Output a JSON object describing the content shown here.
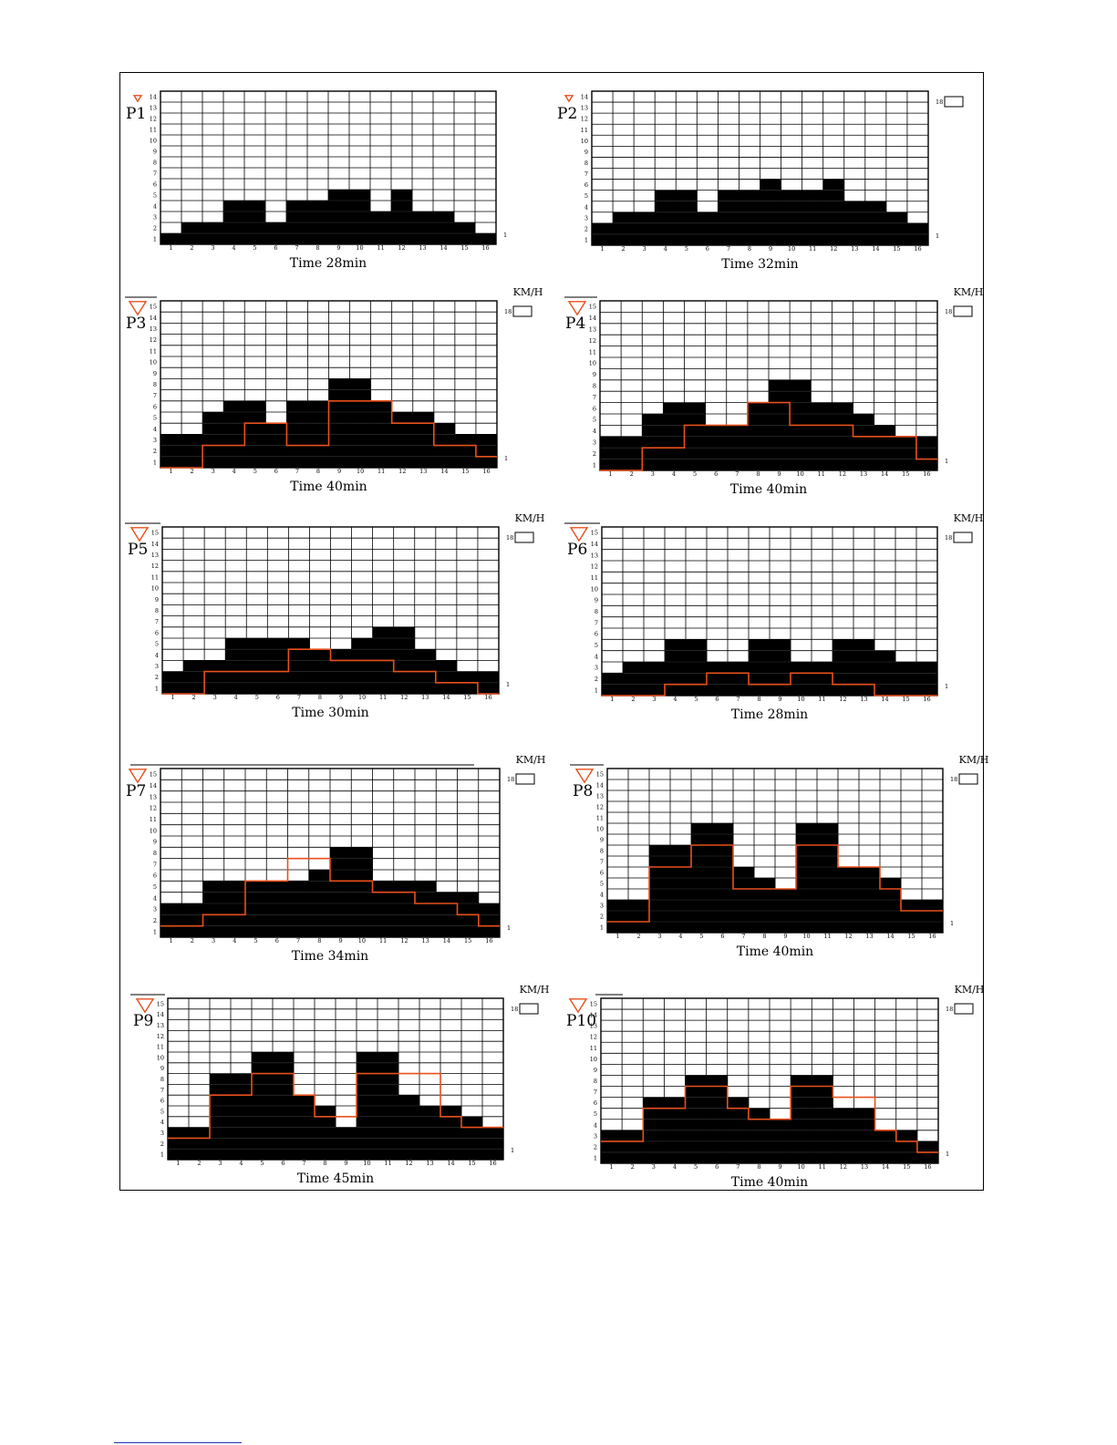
{
  "colors": {
    "grid": "#000000",
    "bars": "#000000",
    "profile_line": "#e8501c",
    "marker": "#e8501c"
  },
  "speed_unit": "KM/H",
  "speed_max_label": "18",
  "speed_min_label": "1",
  "chart_data": [
    {
      "type": "bar",
      "label": "P1",
      "caption": "Time 28min",
      "categories": [
        "1",
        "2",
        "3",
        "4",
        "5",
        "6",
        "7",
        "8",
        "9",
        "10",
        "11",
        "12",
        "13",
        "14",
        "15",
        "16"
      ],
      "y_ticks": [
        "1",
        "2",
        "3",
        "4",
        "5",
        "6",
        "7",
        "8",
        "9",
        "10",
        "11",
        "12",
        "13",
        "14"
      ],
      "ylim": [
        0,
        14
      ],
      "values": [
        1,
        2,
        2,
        4,
        4,
        2,
        4,
        4,
        5,
        5,
        3,
        5,
        3,
        3,
        2,
        1
      ],
      "show_speed_box": false,
      "show_unit": false
    },
    {
      "type": "bar",
      "label": "P2",
      "caption": "Time 32min",
      "categories": [
        "1",
        "2",
        "3",
        "4",
        "5",
        "6",
        "7",
        "8",
        "9",
        "10",
        "11",
        "12",
        "13",
        "14",
        "15",
        "16"
      ],
      "y_ticks": [
        "1",
        "2",
        "3",
        "4",
        "5",
        "6",
        "7",
        "8",
        "9",
        "10",
        "11",
        "12",
        "13",
        "14"
      ],
      "ylim": [
        0,
        14
      ],
      "values": [
        2,
        3,
        3,
        5,
        5,
        3,
        5,
        5,
        6,
        5,
        5,
        6,
        4,
        4,
        3,
        2
      ],
      "show_speed_box": true,
      "show_unit": false
    },
    {
      "type": "bar",
      "label": "P3",
      "caption": "Time 40min",
      "categories": [
        "1",
        "2",
        "3",
        "4",
        "5",
        "6",
        "7",
        "8",
        "9",
        "10",
        "11",
        "12",
        "13",
        "14",
        "15",
        "16"
      ],
      "y_ticks": [
        "1",
        "2",
        "3",
        "4",
        "5",
        "6",
        "7",
        "8",
        "9",
        "10",
        "11",
        "12",
        "13",
        "14",
        "15"
      ],
      "ylim": [
        0,
        15
      ],
      "values": [
        3,
        3,
        5,
        6,
        6,
        4,
        6,
        6,
        8,
        8,
        6,
        5,
        5,
        4,
        3,
        3
      ],
      "line": [
        0,
        0,
        2,
        2,
        4,
        4,
        2,
        2,
        6,
        6,
        6,
        4,
        4,
        2,
        2,
        1
      ],
      "show_speed_box": true,
      "show_unit": true
    },
    {
      "type": "bar",
      "label": "P4",
      "caption": "Time 40min",
      "categories": [
        "1",
        "2",
        "3",
        "4",
        "5",
        "6",
        "7",
        "8",
        "9",
        "10",
        "11",
        "12",
        "13",
        "14",
        "15",
        "16"
      ],
      "y_ticks": [
        "1",
        "2",
        "3",
        "4",
        "5",
        "6",
        "7",
        "8",
        "9",
        "10",
        "11",
        "12",
        "13",
        "14",
        "15"
      ],
      "ylim": [
        0,
        15
      ],
      "values": [
        3,
        3,
        5,
        6,
        6,
        4,
        4,
        6,
        8,
        8,
        6,
        6,
        5,
        4,
        3,
        3
      ],
      "line": [
        0,
        0,
        2,
        2,
        4,
        4,
        4,
        6,
        6,
        4,
        4,
        4,
        3,
        3,
        3,
        1
      ],
      "show_speed_box": true,
      "show_unit": true
    },
    {
      "type": "bar",
      "label": "P5",
      "caption": "Time 30min",
      "categories": [
        "1",
        "2",
        "3",
        "4",
        "5",
        "6",
        "7",
        "8",
        "9",
        "10",
        "11",
        "12",
        "13",
        "14",
        "15",
        "16"
      ],
      "y_ticks": [
        "1",
        "2",
        "3",
        "4",
        "5",
        "6",
        "7",
        "8",
        "9",
        "10",
        "11",
        "12",
        "13",
        "14",
        "15"
      ],
      "ylim": [
        0,
        15
      ],
      "values": [
        2,
        3,
        3,
        5,
        5,
        5,
        5,
        4,
        4,
        5,
        6,
        6,
        4,
        3,
        2,
        2
      ],
      "line": [
        0,
        0,
        2,
        2,
        2,
        2,
        4,
        4,
        3,
        3,
        3,
        2,
        2,
        1,
        1,
        0
      ],
      "show_speed_box": true,
      "show_unit": true
    },
    {
      "type": "bar",
      "label": "P6",
      "caption": "Time 28min",
      "categories": [
        "1",
        "2",
        "3",
        "4",
        "5",
        "6",
        "7",
        "8",
        "9",
        "10",
        "11",
        "12",
        "13",
        "14",
        "15",
        "16"
      ],
      "y_ticks": [
        "1",
        "2",
        "3",
        "4",
        "5",
        "6",
        "7",
        "8",
        "9",
        "10",
        "11",
        "12",
        "13",
        "14",
        "15"
      ],
      "ylim": [
        0,
        15
      ],
      "values": [
        2,
        3,
        3,
        5,
        5,
        3,
        3,
        5,
        5,
        3,
        3,
        5,
        5,
        4,
        3,
        3
      ],
      "line": [
        0,
        0,
        0,
        1,
        1,
        2,
        2,
        1,
        1,
        2,
        2,
        1,
        1,
        0,
        0,
        0
      ],
      "show_speed_box": true,
      "show_unit": true
    },
    {
      "type": "bar",
      "label": "P7",
      "caption": "Time 34min",
      "categories": [
        "1",
        "2",
        "3",
        "4",
        "5",
        "6",
        "7",
        "8",
        "9",
        "10",
        "11",
        "12",
        "13",
        "14",
        "15",
        "16"
      ],
      "y_ticks": [
        "1",
        "2",
        "3",
        "4",
        "5",
        "6",
        "7",
        "8",
        "9",
        "10",
        "11",
        "12",
        "13",
        "14",
        "15"
      ],
      "ylim": [
        0,
        15
      ],
      "values": [
        3,
        3,
        5,
        5,
        5,
        5,
        5,
        6,
        8,
        8,
        5,
        5,
        5,
        4,
        4,
        3
      ],
      "line": [
        1,
        1,
        2,
        2,
        5,
        5,
        7,
        7,
        5,
        5,
        4,
        4,
        3,
        3,
        2,
        1
      ],
      "show_speed_box": true,
      "show_unit": true
    },
    {
      "type": "bar",
      "label": "P8",
      "caption": "Time 40min",
      "categories": [
        "1",
        "2",
        "3",
        "4",
        "5",
        "6",
        "7",
        "8",
        "9",
        "10",
        "11",
        "12",
        "13",
        "14",
        "15",
        "16"
      ],
      "y_ticks": [
        "1",
        "2",
        "3",
        "4",
        "5",
        "6",
        "7",
        "8",
        "9",
        "10",
        "11",
        "12",
        "13",
        "14",
        "15"
      ],
      "ylim": [
        0,
        15
      ],
      "values": [
        3,
        3,
        8,
        8,
        10,
        10,
        6,
        5,
        4,
        10,
        10,
        6,
        6,
        5,
        3,
        3
      ],
      "line": [
        1,
        1,
        6,
        6,
        8,
        8,
        4,
        4,
        4,
        8,
        8,
        6,
        6,
        4,
        2,
        2
      ],
      "show_speed_box": true,
      "show_unit": true
    },
    {
      "type": "bar",
      "label": "P9",
      "caption": "Time 45min",
      "categories": [
        "1",
        "2",
        "3",
        "4",
        "5",
        "6",
        "7",
        "8",
        "9",
        "10",
        "11",
        "12",
        "13",
        "14",
        "15",
        "16"
      ],
      "y_ticks": [
        "1",
        "2",
        "3",
        "4",
        "5",
        "6",
        "7",
        "8",
        "9",
        "10",
        "11",
        "12",
        "13",
        "14",
        "15"
      ],
      "ylim": [
        0,
        15
      ],
      "values": [
        3,
        3,
        8,
        8,
        10,
        10,
        6,
        5,
        3,
        10,
        10,
        6,
        5,
        5,
        4,
        3
      ],
      "line": [
        2,
        2,
        6,
        6,
        8,
        8,
        6,
        4,
        4,
        8,
        8,
        8,
        8,
        4,
        3,
        3
      ],
      "show_speed_box": true,
      "show_unit": true
    },
    {
      "type": "bar",
      "label": "P10",
      "caption": "Time 40min",
      "categories": [
        "1",
        "2",
        "3",
        "4",
        "5",
        "6",
        "7",
        "8",
        "9",
        "10",
        "11",
        "12",
        "13",
        "14",
        "15",
        "16"
      ],
      "y_ticks": [
        "1",
        "2",
        "3",
        "4",
        "5",
        "6",
        "7",
        "8",
        "9",
        "10",
        "11",
        "12",
        "13",
        "14",
        "15"
      ],
      "ylim": [
        0,
        15
      ],
      "values": [
        3,
        3,
        6,
        6,
        8,
        8,
        6,
        5,
        4,
        8,
        8,
        5,
        5,
        3,
        3,
        2
      ],
      "line": [
        2,
        2,
        5,
        5,
        7,
        7,
        5,
        4,
        4,
        7,
        7,
        6,
        6,
        3,
        2,
        1
      ],
      "show_speed_box": true,
      "show_unit": true
    }
  ]
}
